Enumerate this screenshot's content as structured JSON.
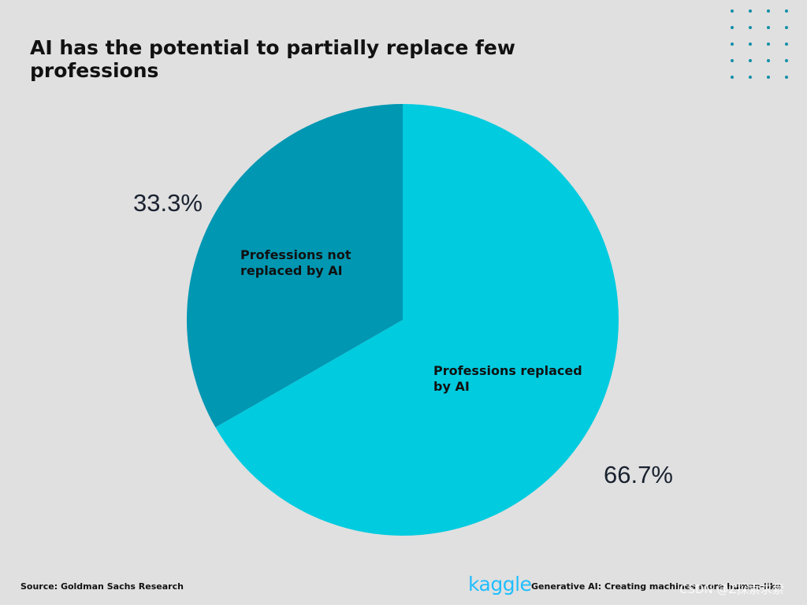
{
  "page": {
    "title": "AI has the potential to partially replace few professions",
    "source": "Source: Goldman Sachs Research",
    "brand": "kaggle",
    "tagline": "Generative AI: Creating machines more human-like",
    "watermark": "CSDN @Z探索求索"
  },
  "colors": {
    "background": "#e0e0e0",
    "replaced": "#00cbdf",
    "not_replaced": "#0097b2",
    "dots": "#0f8fa8",
    "brand": "#20beff"
  },
  "chart_data": {
    "type": "pie",
    "title": "AI has the potential to partially replace few professions",
    "slices": [
      {
        "label": "Professions replaced by AI",
        "value": 66.7,
        "value_label": "66.7%",
        "color": "#00cbdf"
      },
      {
        "label": "Professions not replaced by AI",
        "value": 33.3,
        "value_label": "33.3%",
        "color": "#0097b2"
      }
    ],
    "start_angle": "12 o'clock",
    "direction": "clockwise",
    "legend": "none"
  }
}
